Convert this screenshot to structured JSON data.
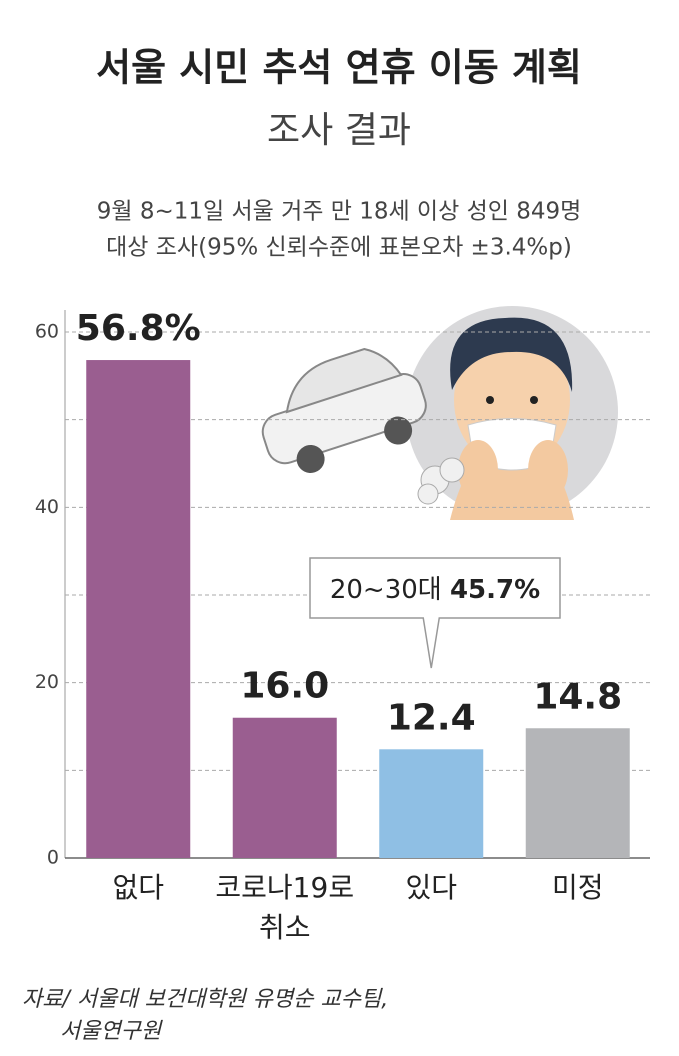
{
  "chart_data": {
    "type": "bar",
    "title": "서울 시민 추석 연휴 이동 계획",
    "subtitle": "조사 결과",
    "description": [
      "9월 8~11일 서울 거주 만 18세 이상 성인 849명",
      "대상 조사(95% 신뢰수준에 표본오차 ±3.4%p)"
    ],
    "categories": [
      "없다",
      "코로나19로\n취소",
      "있다",
      "미정"
    ],
    "values": [
      56.8,
      16.0,
      12.4,
      14.8
    ],
    "value_labels": [
      "56.8%",
      "16.0",
      "12.4",
      "14.8"
    ],
    "colors": [
      "#9a5e90",
      "#9a5e90",
      "#8fbfe4",
      "#b4b5b8"
    ],
    "ylim": [
      0,
      60
    ],
    "yticks": [
      0,
      20,
      40,
      60
    ],
    "yticks_minor": [
      10,
      30,
      50
    ],
    "grid": true,
    "annotation": {
      "category_index": 2,
      "label": "20~30대",
      "value_label": "45.7%"
    },
    "source": [
      "자료/ 서울대 보건대학원 유명순 교수팀,",
      "서울연구원"
    ]
  }
}
